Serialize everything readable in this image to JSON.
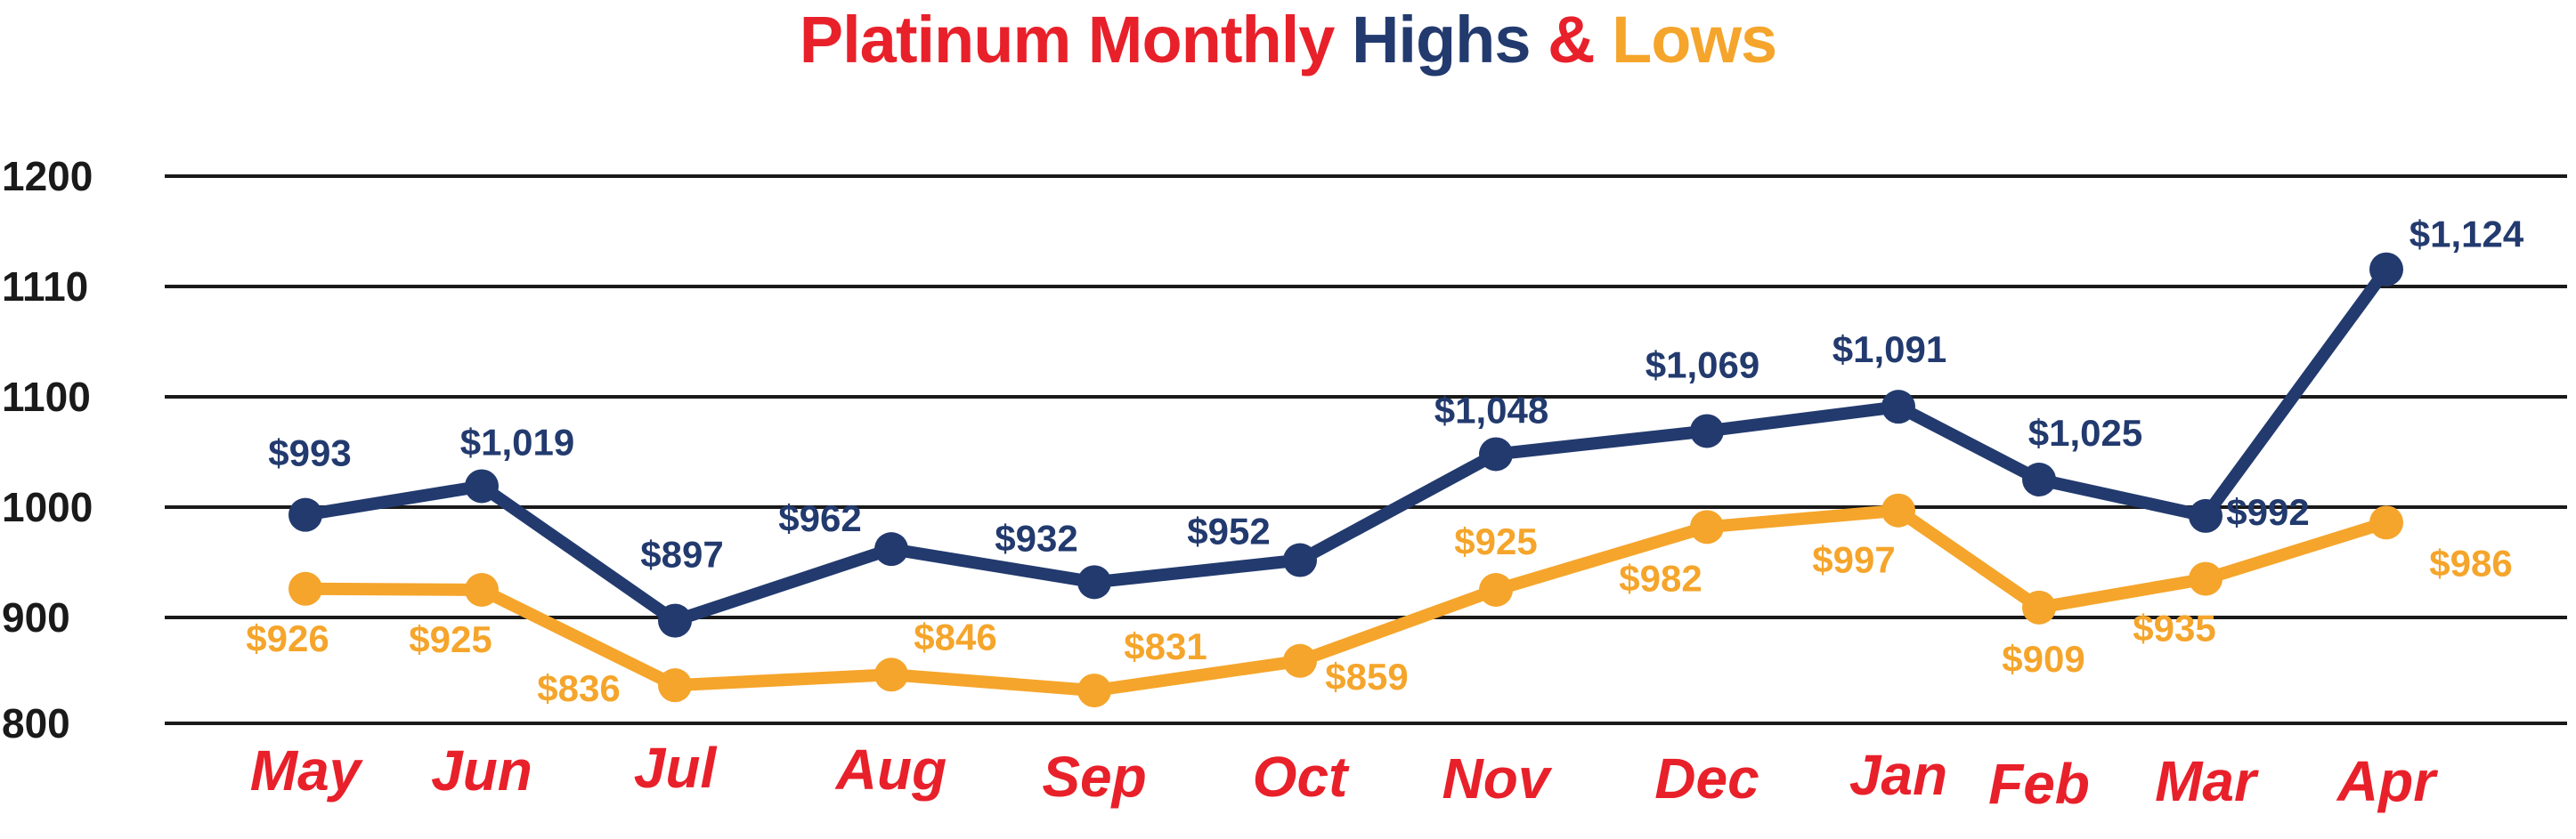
{
  "title": {
    "part1": "Platinum Monthly ",
    "part2": "Highs",
    "part3": " & ",
    "part4": "Lows"
  },
  "colors": {
    "red": "#e8202a",
    "navy": "#223a6e",
    "orange": "#f5a52b",
    "grid": "#1a1a1a",
    "axis_text": "#1a1a1a"
  },
  "chart_data": {
    "type": "line",
    "categories": [
      "May",
      "Jun",
      "Jul",
      "Aug",
      "Sep",
      "Oct",
      "Nov",
      "Dec",
      "Jan",
      "Feb",
      "Mar",
      "Apr"
    ],
    "yticks": [
      800,
      900,
      1000,
      1100,
      1110,
      1200
    ],
    "grid": true,
    "series": [
      {
        "name": "Highs",
        "color": "#223a6e",
        "values": [
          993,
          1019,
          897,
          962,
          932,
          952,
          1048,
          1069,
          1091,
          1025,
          992,
          1124
        ],
        "labels": [
          "$993",
          "$1,019",
          "$897",
          "$962",
          "$932",
          "$952",
          "$1,048",
          "$1,069",
          "$1,091",
          "$1,025",
          "$992",
          "$1,124"
        ]
      },
      {
        "name": "Lows",
        "color": "#f5a52b",
        "values": [
          926,
          925,
          836,
          846,
          831,
          859,
          925,
          982,
          997,
          909,
          935,
          986
        ],
        "labels": [
          "$926",
          "$925",
          "$836",
          "$846",
          "$831",
          "$859",
          "$925",
          "$982",
          "$997",
          "$909",
          "$935",
          "$986"
        ]
      }
    ]
  }
}
